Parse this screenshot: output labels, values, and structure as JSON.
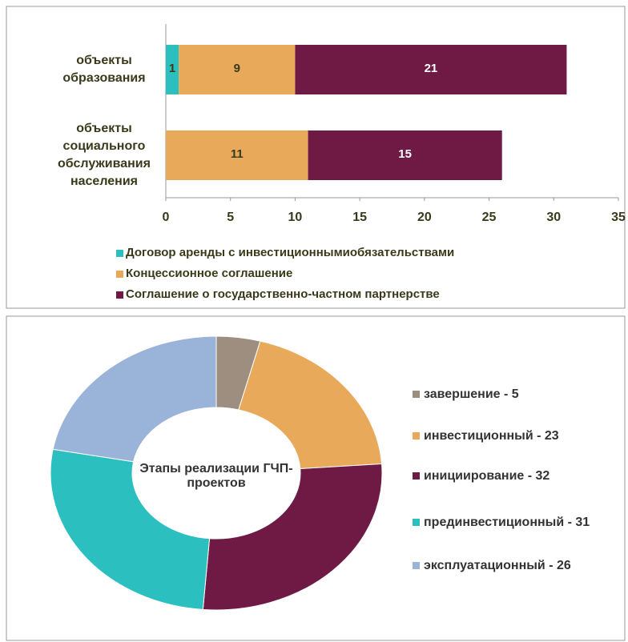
{
  "chart_data": [
    {
      "type": "hbar-stacked",
      "categories": [
        "объекты образования",
        "объекты социального обслуживания населения"
      ],
      "series": [
        {
          "name": "Договор аренды с инвестиционнымиобязательствами",
          "color": "#2bbfbf",
          "values": [
            1,
            null
          ]
        },
        {
          "name": "Концессионное соглашение",
          "color": "#e8a95a",
          "values": [
            9,
            11
          ]
        },
        {
          "name": "Соглашение о государственно-частном партнерстве",
          "color": "#6e1a45",
          "values": [
            21,
            15
          ]
        }
      ],
      "xlim": [
        0,
        35
      ],
      "xticks": [
        0,
        5,
        10,
        15,
        20,
        25,
        30,
        35
      ],
      "legend": "bottom"
    },
    {
      "type": "donut",
      "title": "Этапы реализации ГЧП-проектов",
      "labels": [
        "завершение - 5",
        "инвестиционный - 23",
        "инициирование - 32",
        "прединвестиционный - 31",
        "эксплуатационный - 26"
      ],
      "values": [
        5,
        23,
        32,
        31,
        26
      ],
      "colors": [
        "#9e8e80",
        "#e8a95a",
        "#6e1a45",
        "#2bbfbf",
        "#99b3d9"
      ],
      "legend": "right"
    }
  ]
}
